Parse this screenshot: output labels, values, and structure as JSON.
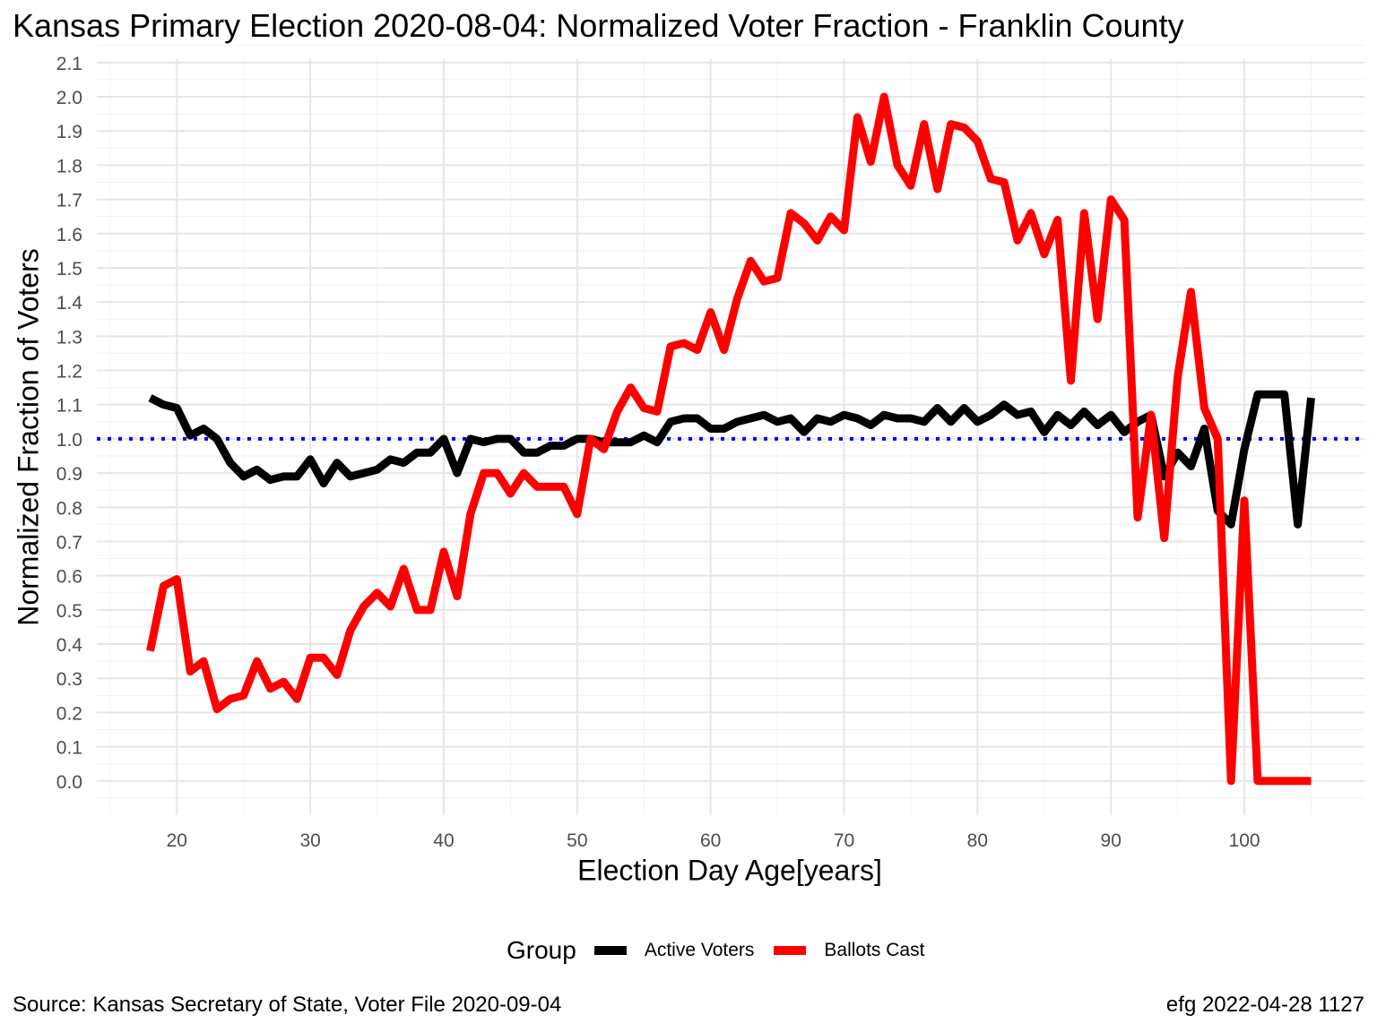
{
  "chart_data": {
    "type": "line",
    "title": "Kansas Primary Election 2020-08-04:  Normalized Voter Fraction - Franklin County",
    "xlabel": "Election Day Age[years]",
    "ylabel": "Normalized Fraction of Voters",
    "xlim": [
      14,
      109
    ],
    "ylim": [
      -0.1,
      2.11
    ],
    "x_ticks": [
      20,
      30,
      40,
      50,
      60,
      70,
      80,
      90,
      100
    ],
    "y_ticks": [
      "0.0",
      "0.1",
      "0.2",
      "0.3",
      "0.4",
      "0.5",
      "0.6",
      "0.7",
      "0.8",
      "0.9",
      "1.0",
      "1.1",
      "1.2",
      "1.3",
      "1.4",
      "1.5",
      "1.6",
      "1.7",
      "1.8",
      "1.9",
      "2.0",
      "2.1"
    ],
    "grid": true,
    "legend_position": "bottom",
    "legend_title": "Group",
    "reference_line": {
      "y": 1.0,
      "color": "#0000ff",
      "style": "dotted"
    },
    "series": [
      {
        "name": "Active Voters",
        "color": "#000000",
        "points": [
          [
            18,
            1.12
          ],
          [
            19,
            1.1
          ],
          [
            20,
            1.09
          ],
          [
            21,
            1.01
          ],
          [
            22,
            1.03
          ],
          [
            23,
            1.0
          ],
          [
            24,
            0.93
          ],
          [
            25,
            0.89
          ],
          [
            26,
            0.91
          ],
          [
            27,
            0.88
          ],
          [
            28,
            0.89
          ],
          [
            29,
            0.89
          ],
          [
            30,
            0.94
          ],
          [
            31,
            0.87
          ],
          [
            32,
            0.93
          ],
          [
            33,
            0.89
          ],
          [
            34,
            0.9
          ],
          [
            35,
            0.91
          ],
          [
            36,
            0.94
          ],
          [
            37,
            0.93
          ],
          [
            38,
            0.96
          ],
          [
            39,
            0.96
          ],
          [
            40,
            1.0
          ],
          [
            41,
            0.9
          ],
          [
            42,
            1.0
          ],
          [
            43,
            0.99
          ],
          [
            44,
            1.0
          ],
          [
            45,
            1.0
          ],
          [
            46,
            0.96
          ],
          [
            47,
            0.96
          ],
          [
            48,
            0.98
          ],
          [
            49,
            0.98
          ],
          [
            50,
            1.0
          ],
          [
            51,
            1.0
          ],
          [
            52,
            0.99
          ],
          [
            53,
            0.99
          ],
          [
            54,
            0.99
          ],
          [
            55,
            1.01
          ],
          [
            56,
            0.99
          ],
          [
            57,
            1.05
          ],
          [
            58,
            1.06
          ],
          [
            59,
            1.06
          ],
          [
            60,
            1.03
          ],
          [
            61,
            1.03
          ],
          [
            62,
            1.05
          ],
          [
            63,
            1.06
          ],
          [
            64,
            1.07
          ],
          [
            65,
            1.05
          ],
          [
            66,
            1.06
          ],
          [
            67,
            1.02
          ],
          [
            68,
            1.06
          ],
          [
            69,
            1.05
          ],
          [
            70,
            1.07
          ],
          [
            71,
            1.06
          ],
          [
            72,
            1.04
          ],
          [
            73,
            1.07
          ],
          [
            74,
            1.06
          ],
          [
            75,
            1.06
          ],
          [
            76,
            1.05
          ],
          [
            77,
            1.09
          ],
          [
            78,
            1.05
          ],
          [
            79,
            1.09
          ],
          [
            80,
            1.05
          ],
          [
            81,
            1.07
          ],
          [
            82,
            1.1
          ],
          [
            83,
            1.07
          ],
          [
            84,
            1.08
          ],
          [
            85,
            1.02
          ],
          [
            86,
            1.07
          ],
          [
            87,
            1.04
          ],
          [
            88,
            1.08
          ],
          [
            89,
            1.04
          ],
          [
            90,
            1.07
          ],
          [
            91,
            1.02
          ],
          [
            92,
            1.05
          ],
          [
            93,
            1.07
          ],
          [
            94,
            0.89
          ],
          [
            95,
            0.96
          ],
          [
            96,
            0.92
          ],
          [
            97,
            1.03
          ],
          [
            98,
            0.79
          ],
          [
            99,
            0.75
          ],
          [
            100,
            0.97
          ],
          [
            101,
            1.13
          ],
          [
            102,
            1.13
          ],
          [
            103,
            1.13
          ],
          [
            104,
            0.75
          ],
          [
            105,
            1.12
          ]
        ]
      },
      {
        "name": "Ballots Cast",
        "color": "#ff0000",
        "points": [
          [
            18,
            0.38
          ],
          [
            19,
            0.57
          ],
          [
            20,
            0.59
          ],
          [
            21,
            0.32
          ],
          [
            22,
            0.35
          ],
          [
            23,
            0.21
          ],
          [
            24,
            0.24
          ],
          [
            25,
            0.25
          ],
          [
            26,
            0.35
          ],
          [
            27,
            0.27
          ],
          [
            28,
            0.29
          ],
          [
            29,
            0.24
          ],
          [
            30,
            0.36
          ],
          [
            31,
            0.36
          ],
          [
            32,
            0.31
          ],
          [
            33,
            0.44
          ],
          [
            34,
            0.51
          ],
          [
            35,
            0.55
          ],
          [
            36,
            0.51
          ],
          [
            37,
            0.62
          ],
          [
            38,
            0.5
          ],
          [
            39,
            0.5
          ],
          [
            40,
            0.67
          ],
          [
            41,
            0.54
          ],
          [
            42,
            0.78
          ],
          [
            43,
            0.9
          ],
          [
            44,
            0.9
          ],
          [
            45,
            0.84
          ],
          [
            46,
            0.9
          ],
          [
            47,
            0.86
          ],
          [
            48,
            0.86
          ],
          [
            49,
            0.86
          ],
          [
            50,
            0.78
          ],
          [
            51,
            1.0
          ],
          [
            52,
            0.97
          ],
          [
            53,
            1.08
          ],
          [
            54,
            1.15
          ],
          [
            55,
            1.09
          ],
          [
            56,
            1.08
          ],
          [
            57,
            1.27
          ],
          [
            58,
            1.28
          ],
          [
            59,
            1.26
          ],
          [
            60,
            1.37
          ],
          [
            61,
            1.26
          ],
          [
            62,
            1.41
          ],
          [
            63,
            1.52
          ],
          [
            64,
            1.46
          ],
          [
            65,
            1.47
          ],
          [
            66,
            1.66
          ],
          [
            67,
            1.63
          ],
          [
            68,
            1.58
          ],
          [
            69,
            1.65
          ],
          [
            70,
            1.61
          ],
          [
            71,
            1.94
          ],
          [
            72,
            1.81
          ],
          [
            73,
            2.0
          ],
          [
            74,
            1.8
          ],
          [
            75,
            1.74
          ],
          [
            76,
            1.92
          ],
          [
            77,
            1.73
          ],
          [
            78,
            1.92
          ],
          [
            79,
            1.91
          ],
          [
            80,
            1.87
          ],
          [
            81,
            1.76
          ],
          [
            82,
            1.75
          ],
          [
            83,
            1.58
          ],
          [
            84,
            1.66
          ],
          [
            85,
            1.54
          ],
          [
            86,
            1.64
          ],
          [
            87,
            1.17
          ],
          [
            88,
            1.66
          ],
          [
            89,
            1.35
          ],
          [
            90,
            1.7
          ],
          [
            91,
            1.64
          ],
          [
            92,
            0.77
          ],
          [
            93,
            1.07
          ],
          [
            94,
            0.71
          ],
          [
            95,
            1.18
          ],
          [
            96,
            1.43
          ],
          [
            97,
            1.09
          ],
          [
            98,
            1.0
          ],
          [
            99,
            0.0
          ],
          [
            100,
            0.82
          ],
          [
            101,
            0.0
          ],
          [
            102,
            0.0
          ],
          [
            103,
            0.0
          ],
          [
            104,
            0.0
          ],
          [
            105,
            0.0
          ]
        ]
      }
    ]
  },
  "caption": {
    "source": "Source:  Kansas Secretary of State, Voter File  2020-09-04",
    "credit": "efg 2022-04-28 1127"
  }
}
